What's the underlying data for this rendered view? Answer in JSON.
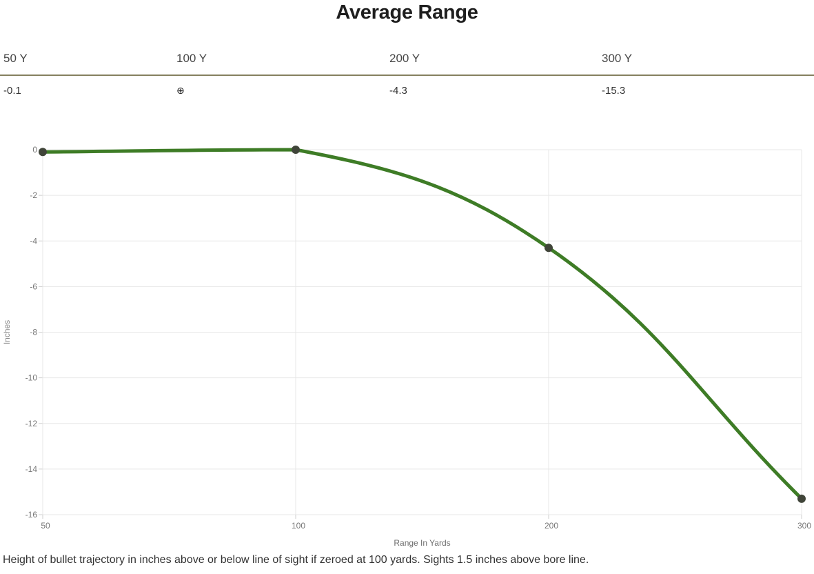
{
  "page": {
    "title": "Average Range",
    "footnote": "Height of bullet trajectory in inches above or below line of sight if zeroed at 100 yards. Sights 1.5 inches above bore line."
  },
  "summary_table": {
    "border_color": "#85805f",
    "columns": [
      {
        "label": "50 Y",
        "value": "-0.1"
      },
      {
        "label": "100 Y",
        "value": "⊕"
      },
      {
        "label": "200 Y",
        "value": "-4.3"
      },
      {
        "label": "300 Y",
        "value": "-15.3"
      }
    ],
    "zero_marker_symbol": "⊕",
    "zero_marker_meaning": "zeroed at this range"
  },
  "chart_data": {
    "type": "line",
    "title": "Average Range",
    "categories": [
      "50",
      "100",
      "200",
      "300"
    ],
    "series": [
      {
        "name": "Average Range",
        "values": [
          -0.1,
          0,
          -4.3,
          -15.3
        ]
      }
    ],
    "xlabel": "Range In Yards",
    "ylabel": "Inches",
    "ylim": [
      -16,
      0
    ],
    "y_ticks": [
      0,
      -2,
      -4,
      -6,
      -8,
      -10,
      -12,
      -14,
      -16
    ],
    "grid": true,
    "legend": "none",
    "smooth": true,
    "line_color": "#3e7c26",
    "marker_color": "#404539",
    "grid_color": "#e7e7e7",
    "tick_label_color": "#777777",
    "axis_title_color": "#6d6d6d"
  }
}
